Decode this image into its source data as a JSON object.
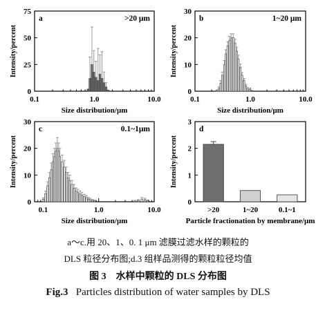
{
  "figure": {
    "caption_sub_line1": "a～c.用 20、1、0. 1 μm 滤膜过滤水样的颗粒的",
    "caption_sub_line2": "DLS 粒径分布图;d.3 组样品测得的颗粒粒径均值",
    "caption_cn": "图 3　水样中颗粒的 DLS 分布图",
    "caption_en_label": "Fig.3",
    "caption_en_text": "Particles distribution of water samples by DLS"
  },
  "colors": {
    "dark_bar": "#6e6e6e",
    "light_bar": "#e6e6e6",
    "mid_bar": "#d0d0d0",
    "error_bar": "#999999",
    "axis": "#000000"
  },
  "chart_data": [
    {
      "id": "a",
      "type": "bar",
      "panel_label": "a",
      "annotation": ">20 μm",
      "xlabel": "Size distribution/μm",
      "ylabel": "Intensity/percent",
      "xscale": "log",
      "xlim": [
        0.1,
        10.0
      ],
      "ylim": [
        0,
        75
      ],
      "xticks": [
        "0.1",
        "1.0",
        "10.0"
      ],
      "yticks": [
        0,
        25,
        50,
        75
      ],
      "bar_color": "dark",
      "x": [
        0.78,
        0.84,
        0.91,
        0.98,
        1.06,
        1.15,
        1.24,
        1.34,
        1.45,
        1.57,
        1.7
      ],
      "values": [
        2,
        12,
        25,
        18,
        13,
        10,
        16,
        12,
        8,
        4,
        1
      ],
      "errors": [
        0,
        20,
        35,
        20,
        15,
        30,
        18,
        25,
        10,
        4,
        0
      ]
    },
    {
      "id": "b",
      "type": "bar",
      "panel_label": "b",
      "annotation": "1~20 μm",
      "xlabel": "Size distribution/μm",
      "ylabel": "Intensity/percent",
      "xscale": "log",
      "xlim": [
        0.1,
        10.0
      ],
      "ylim": [
        0,
        30
      ],
      "xticks": [
        "0.1",
        "1.0",
        "10.0"
      ],
      "yticks": [
        0,
        10,
        20,
        30
      ],
      "bar_color": "light",
      "x": [
        0.25,
        0.27,
        0.29,
        0.31,
        0.34,
        0.36,
        0.39,
        0.42,
        0.45,
        0.49,
        0.53,
        0.57,
        0.61,
        0.66,
        0.71,
        0.77,
        0.83,
        0.9,
        0.97,
        1.05
      ],
      "values": [
        0.3,
        1,
        3,
        6,
        10,
        14,
        17,
        19,
        20,
        20,
        18,
        15,
        12,
        9,
        6,
        4,
        2,
        1,
        0.5,
        0.2
      ],
      "errors": [
        0.2,
        0.6,
        1,
        1.2,
        1.5,
        1.5,
        1.5,
        1.5,
        1.5,
        1.5,
        1.5,
        1.5,
        1.5,
        1.2,
        1,
        0.8,
        0.6,
        0.4,
        0.3,
        0.2
      ]
    },
    {
      "id": "c",
      "type": "bar",
      "panel_label": "c",
      "annotation": "0.1~1μm",
      "xlabel": "Size distribution/μm",
      "ylabel": "Intensity/percent",
      "xscale": "log",
      "xlim": [
        0.07,
        10.0
      ],
      "ylim": [
        0,
        30
      ],
      "xticks": [
        "0.1",
        "1.0",
        "10.0"
      ],
      "yticks": [
        0,
        10,
        20,
        30
      ],
      "bar_color": "light",
      "x": [
        0.1,
        0.11,
        0.12,
        0.13,
        0.14,
        0.15,
        0.16,
        0.17,
        0.18,
        0.19,
        0.2,
        0.22,
        0.24,
        0.26,
        0.28,
        0.3,
        0.33,
        0.36,
        0.39,
        0.42,
        0.46,
        0.5,
        0.55,
        0.6,
        0.65,
        0.7,
        0.77,
        0.85,
        4.5,
        5.2,
        6.0,
        6.8,
        7.6
      ],
      "values": [
        1,
        3,
        6,
        9,
        12,
        15,
        17,
        19,
        20,
        19,
        17,
        15,
        13,
        11,
        9,
        8,
        6.5,
        5,
        4,
        3.5,
        3,
        2.5,
        2,
        1.5,
        1,
        0.8,
        0.5,
        0.3,
        0.3,
        0.5,
        1,
        0.8,
        0.4
      ],
      "errors": [
        0.5,
        1,
        1.5,
        2,
        2.5,
        3,
        3,
        3,
        4,
        3,
        3,
        2.5,
        2.5,
        2,
        2,
        2,
        1.5,
        1.5,
        1.2,
        1.2,
        1,
        1,
        0.8,
        0.8,
        0.6,
        0.5,
        0.4,
        0.3,
        0.2,
        0.3,
        0.6,
        0.5,
        0.3
      ]
    },
    {
      "id": "d",
      "type": "bar",
      "panel_label": "d",
      "annotation": "",
      "xlabel": "Particle fractionation by membrane/μm",
      "ylabel": "Intensity/percent",
      "ylim": [
        0,
        3
      ],
      "yticks": [
        0,
        1,
        2,
        3
      ],
      "categories": [
        ">20",
        "1~20",
        "0.1~1"
      ],
      "values": [
        2.15,
        0.42,
        0.26
      ],
      "errors": [
        0.1,
        0,
        0
      ],
      "category_colors": [
        "dark",
        "mid",
        "light"
      ]
    }
  ]
}
